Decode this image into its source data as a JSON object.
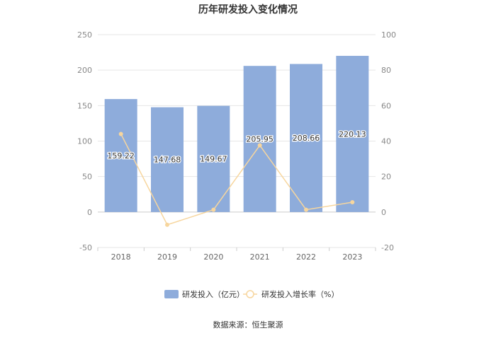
{
  "chart_data": {
    "type": "bar",
    "title": "历年研发投入变化情况",
    "categories": [
      "2018",
      "2019",
      "2020",
      "2021",
      "2022",
      "2023"
    ],
    "series": [
      {
        "name": "研发投入（亿元）",
        "type": "bar",
        "axis": "left",
        "values": [
          159.22,
          147.68,
          149.67,
          205.95,
          208.66,
          220.13
        ],
        "labels": [
          "159.22",
          "147.68",
          "149.67",
          "205.95",
          "208.66",
          "220.13"
        ],
        "color": "#8eacdb"
      },
      {
        "name": "研发投入增长率（%）",
        "type": "line",
        "axis": "right",
        "values": [
          44.0,
          -7.2,
          1.3,
          37.6,
          1.3,
          5.5
        ],
        "color": "#f7d69e"
      }
    ],
    "y_left": {
      "min": -50,
      "max": 250,
      "ticks": [
        "-50",
        "0",
        "50",
        "100",
        "150",
        "200",
        "250"
      ]
    },
    "y_right": {
      "min": -20,
      "max": 100,
      "ticks": [
        "-20",
        "0",
        "20",
        "40",
        "60",
        "80",
        "100"
      ]
    },
    "grid": true,
    "legend": "bottom"
  },
  "source": "数据来源：恒生聚源"
}
